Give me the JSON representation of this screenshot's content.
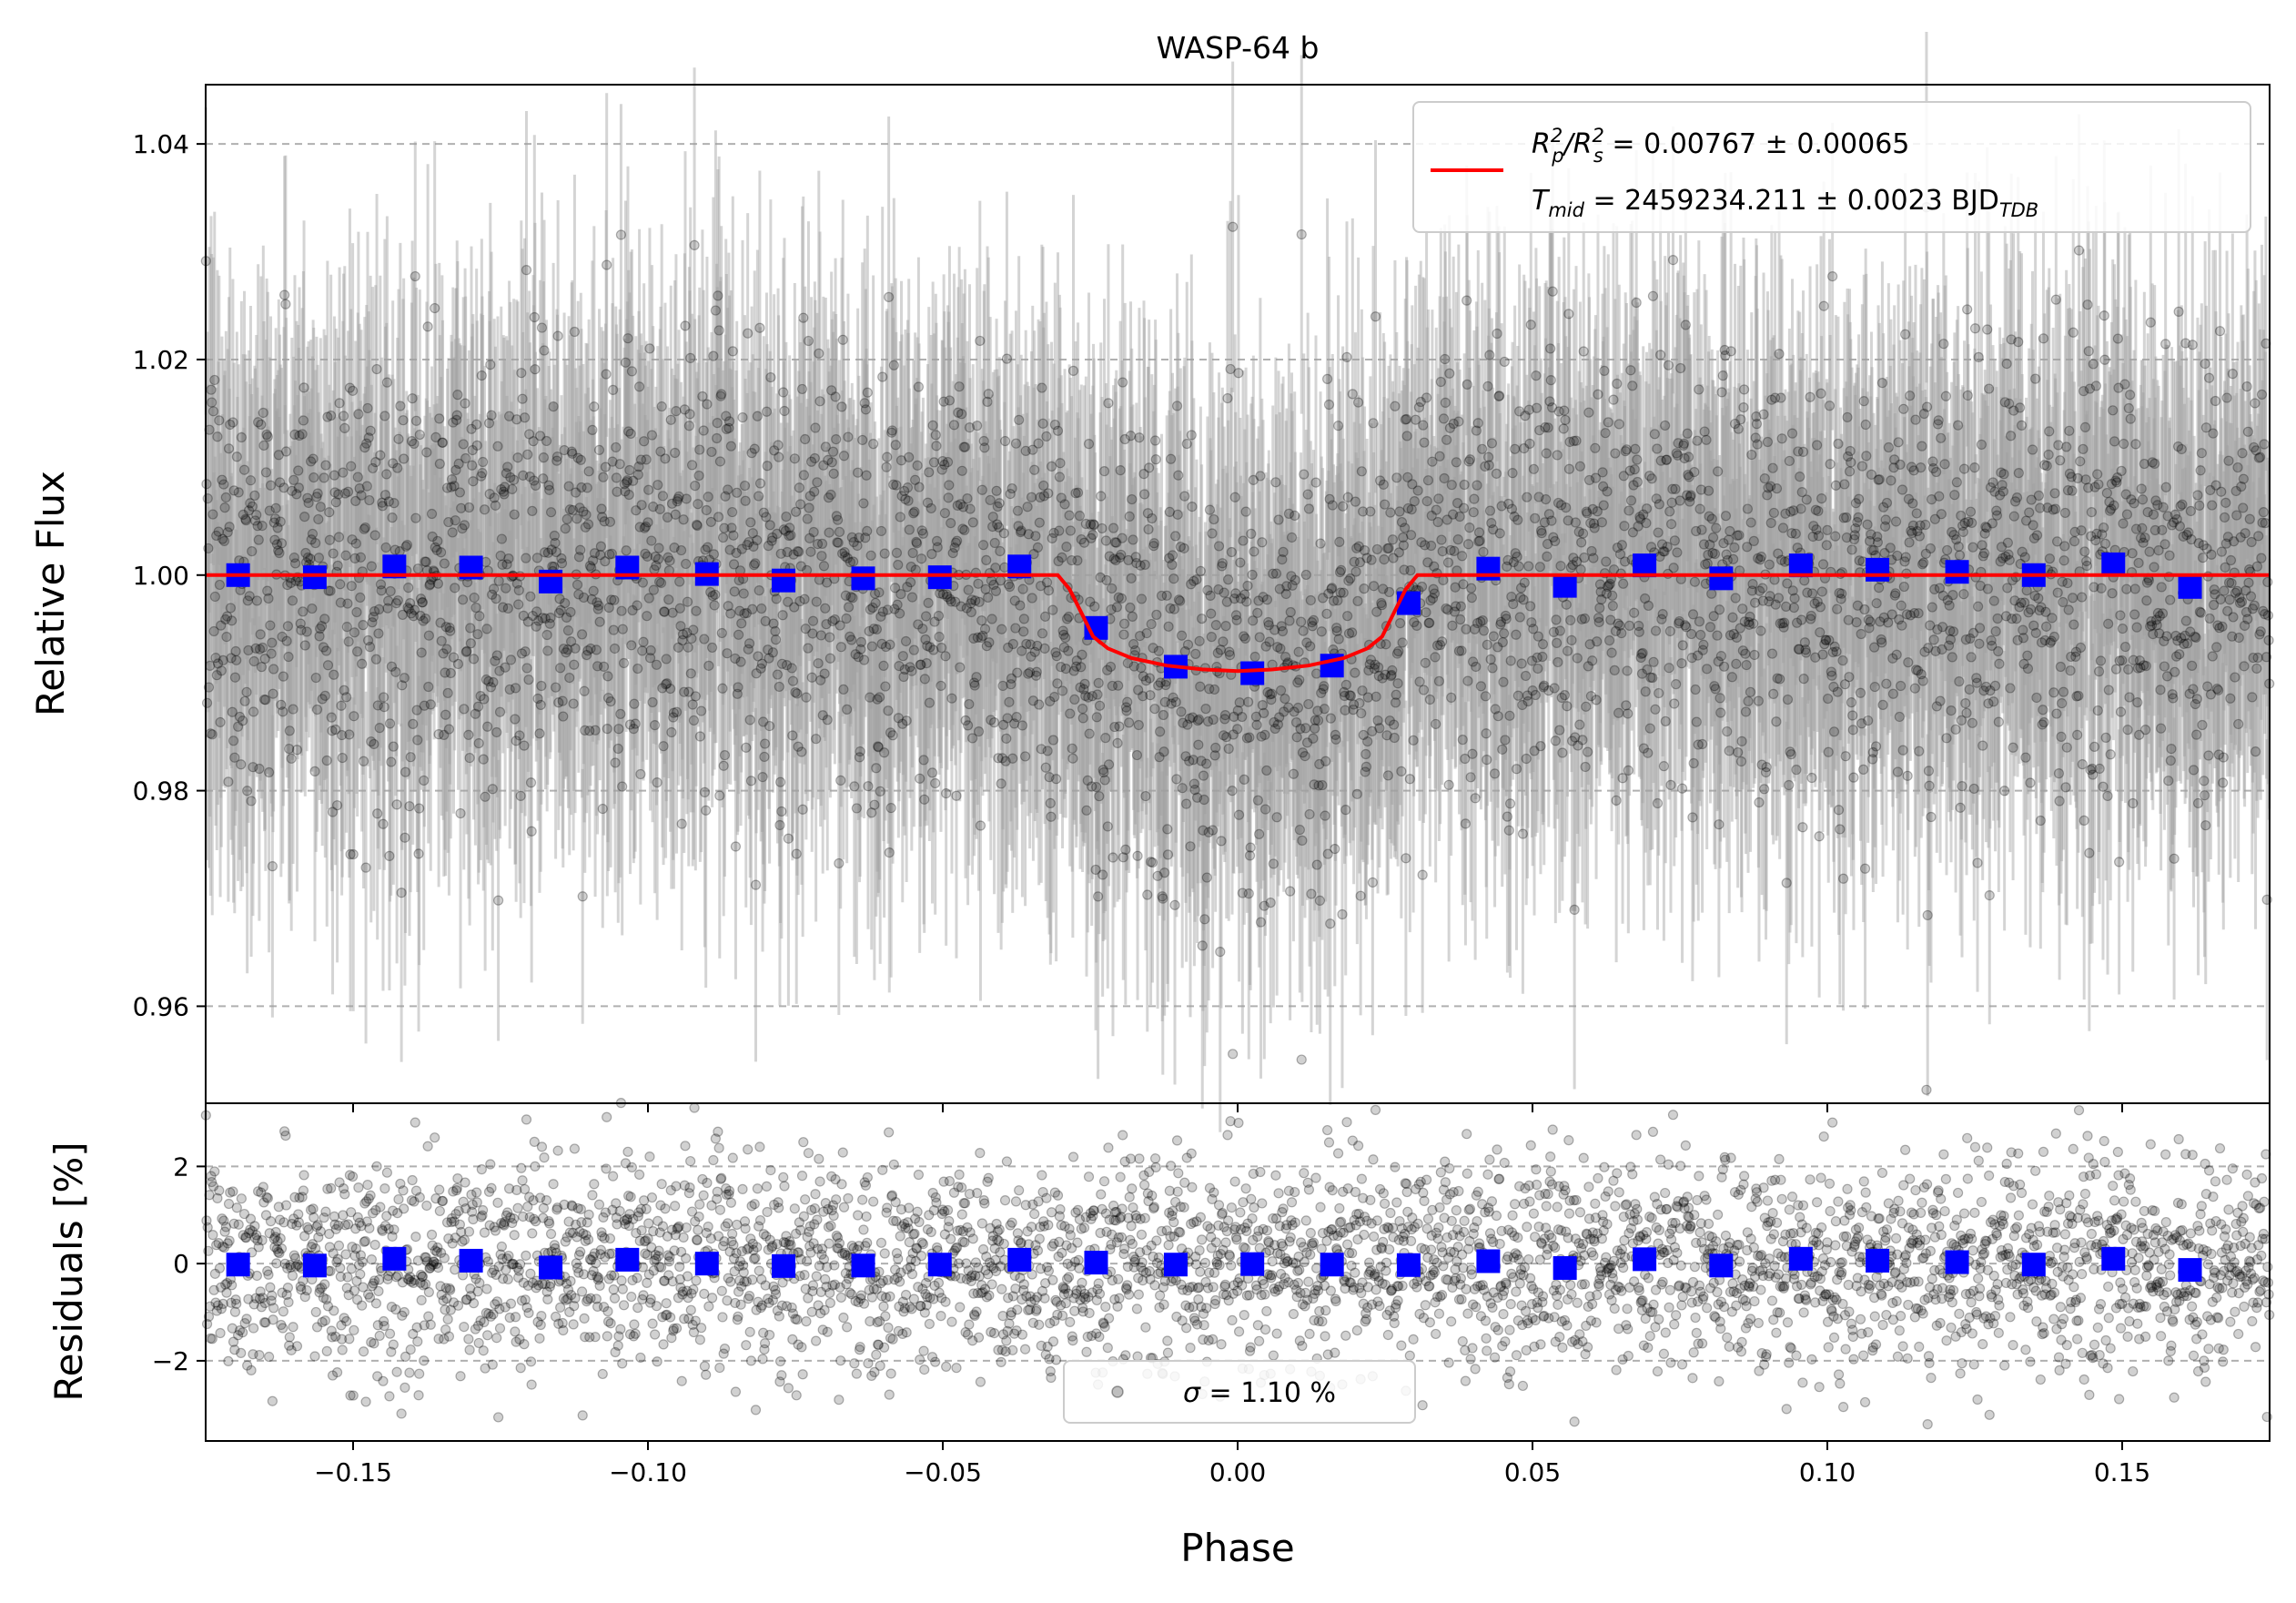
{
  "chart_data": [
    {
      "type": "scatter",
      "title": "WASP-64 b",
      "xlabel": "",
      "ylabel": "Relative Flux",
      "xlim": [
        -0.175,
        0.175
      ],
      "ylim": [
        0.951,
        1.0455
      ],
      "grid": "horizontal dashed at y ticks",
      "x_ticks": [
        -0.15,
        -0.1,
        -0.05,
        0.0,
        0.05,
        0.1,
        0.15
      ],
      "y_ticks": [
        0.96,
        0.98,
        1.0,
        1.02,
        1.04
      ],
      "y_tick_labels": [
        "0.96",
        "0.98",
        "1.00",
        "1.02",
        "1.04"
      ],
      "legend": {
        "placement": "top-right",
        "line1_prefix": "R",
        "line1_sub_a": "p",
        "line1_sup_a": "2",
        "line1_slash": "/R",
        "line1_sub_b": "s",
        "line1_sup_b": "2",
        "line1_value": " = 0.00767 ± 0.00065",
        "line2_prefix": "T",
        "line2_sub": "mid",
        "line2_value": " = 2459234.211 ± 0.0023 BJD",
        "line2_unit_sub": "TDB"
      },
      "model": {
        "color": "#ff0000",
        "baseline": 1.0,
        "x": [
          -0.175,
          -0.0305,
          -0.0285,
          -0.0265,
          -0.0245,
          -0.022,
          -0.018,
          -0.012,
          -0.006,
          0.0,
          0.006,
          0.012,
          0.018,
          0.022,
          0.0245,
          0.0265,
          0.0285,
          0.0305,
          0.175
        ],
        "y": [
          1.0,
          1.0,
          0.9987,
          0.9965,
          0.9943,
          0.9932,
          0.9923,
          0.9916,
          0.99125,
          0.9911,
          0.99125,
          0.9916,
          0.9923,
          0.9932,
          0.9943,
          0.9965,
          0.9987,
          1.0,
          1.0
        ]
      },
      "raw_points": {
        "color": "#000000",
        "count": 3600,
        "scatter_std": 0.0105,
        "errorbar_color": "#a0a0a0"
      },
      "binned": {
        "color": "#0000ff",
        "x": [
          -0.1695,
          -0.1565,
          -0.143,
          -0.13,
          -0.1165,
          -0.1035,
          -0.09,
          -0.077,
          -0.0635,
          -0.0505,
          -0.037,
          -0.024,
          -0.0105,
          0.0025,
          0.016,
          0.029,
          0.0425,
          0.0555,
          0.069,
          0.082,
          0.0955,
          0.1085,
          0.122,
          0.135,
          0.1485,
          0.1615
        ],
        "y": [
          1.0,
          0.9998,
          1.0008,
          1.0007,
          0.9994,
          1.0007,
          1.0001,
          0.9995,
          0.9997,
          0.9998,
          1.0008,
          0.9951,
          0.9915,
          0.9909,
          0.9916,
          0.9974,
          1.0006,
          0.999,
          1.0009,
          0.9997,
          1.0009,
          1.0005,
          1.0003,
          1.0,
          1.001,
          0.9989
        ]
      }
    },
    {
      "type": "scatter",
      "title": "",
      "xlabel": "Phase",
      "ylabel": "Residuals [%]",
      "xlim": [
        -0.175,
        0.175
      ],
      "ylim": [
        -3.65,
        3.3
      ],
      "grid": "horizontal dashed at y ticks",
      "x_ticks": [
        -0.15,
        -0.1,
        -0.05,
        0.0,
        0.05,
        0.1,
        0.15
      ],
      "x_tick_labels": [
        "−0.15",
        "−0.10",
        "−0.05",
        "0.00",
        "0.05",
        "0.10",
        "0.15"
      ],
      "y_ticks": [
        -2,
        0,
        2
      ],
      "y_tick_labels": [
        "−2",
        "0",
        "2"
      ],
      "legend": {
        "placement": "bottom-center",
        "sigma_symbol": "σ",
        "text": " = 1.10 %"
      },
      "raw_points": {
        "color": "#000000",
        "count": 3600,
        "scatter_std": 1.1
      },
      "binned": {
        "color": "#0000ff",
        "x": [
          -0.1695,
          -0.1565,
          -0.143,
          -0.13,
          -0.1165,
          -0.1035,
          -0.09,
          -0.077,
          -0.0635,
          -0.0505,
          -0.037,
          -0.024,
          -0.0105,
          0.0025,
          0.016,
          0.029,
          0.0425,
          0.0555,
          0.069,
          0.082,
          0.0955,
          0.1085,
          0.122,
          0.135,
          0.1485,
          0.1615
        ],
        "y": [
          -0.02,
          -0.04,
          0.1,
          0.06,
          -0.08,
          0.08,
          0.0,
          -0.05,
          -0.04,
          -0.02,
          0.08,
          0.02,
          -0.02,
          -0.01,
          -0.02,
          -0.03,
          0.05,
          -0.09,
          0.09,
          -0.04,
          0.1,
          0.06,
          0.03,
          -0.02,
          0.1,
          -0.13
        ]
      }
    }
  ]
}
